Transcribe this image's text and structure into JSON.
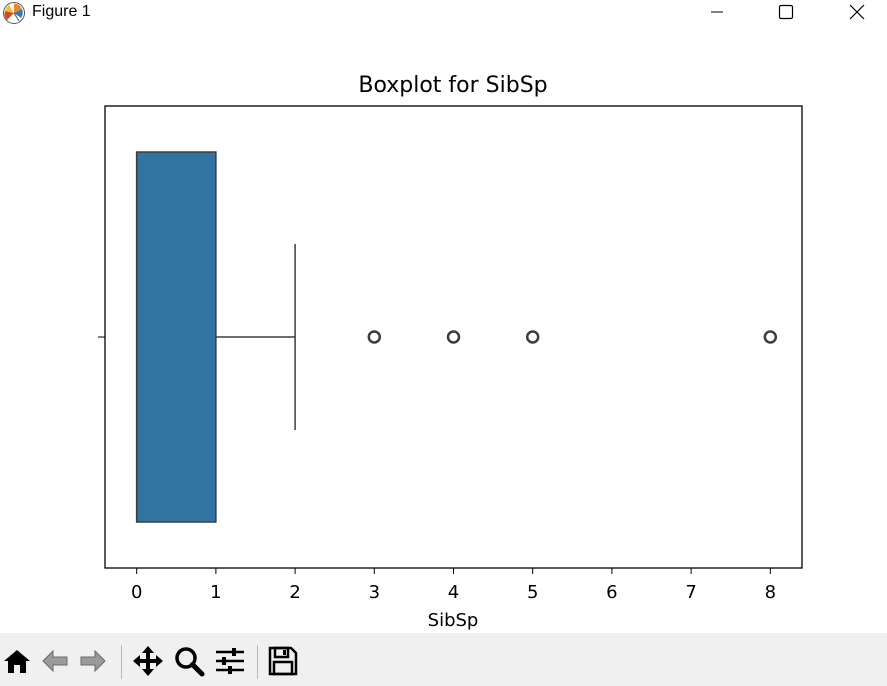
{
  "window": {
    "title": "Figure 1"
  },
  "toolbar": {
    "buttons": [
      {
        "name": "home",
        "icon": "home-icon"
      },
      {
        "name": "back",
        "icon": "arrow-left-icon"
      },
      {
        "name": "forward",
        "icon": "arrow-right-icon"
      },
      {
        "name": "pan",
        "icon": "move-icon"
      },
      {
        "name": "zoom",
        "icon": "magnifier-icon"
      },
      {
        "name": "configure-subplots",
        "icon": "sliders-icon"
      },
      {
        "name": "save",
        "icon": "floppy-disk-icon"
      }
    ]
  },
  "chart_data": {
    "type": "box",
    "title": "Boxplot for SibSp",
    "xlabel": "SibSp",
    "ylabel": "",
    "orientation": "horizontal",
    "xlim": [
      -0.4,
      8.4
    ],
    "xticks": [
      0,
      1,
      2,
      3,
      4,
      5,
      6,
      7,
      8
    ],
    "box": {
      "q1": 0,
      "median": 0,
      "q3": 1,
      "whisker_low": 0,
      "whisker_high": 2
    },
    "outliers": [
      3,
      4,
      5,
      8
    ],
    "box_color": "#3274a1",
    "edge_color": "#3d3d3d",
    "grid": false
  }
}
